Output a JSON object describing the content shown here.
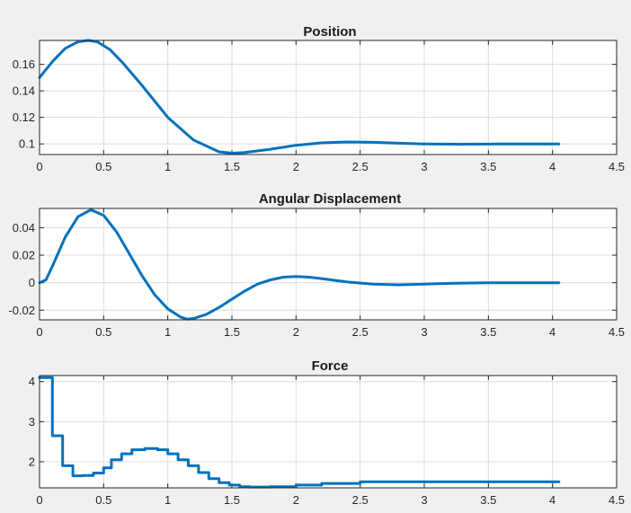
{
  "colors": {
    "line": "#0072bd",
    "background": "#f0f0f0",
    "axes_bg": "#ffffff",
    "grid": "#dcdcdc",
    "box": "#262626"
  },
  "chart_data": [
    {
      "type": "line",
      "title": "Position",
      "xlabel": "",
      "ylabel": "",
      "xlim": [
        0,
        4.5
      ],
      "ylim": [
        0.092,
        0.178
      ],
      "grid": true,
      "xticks": [
        "0",
        "0.5",
        "1",
        "1.5",
        "2",
        "2.5",
        "3",
        "3.5",
        "4",
        "4.5"
      ],
      "yticks": [
        "0.1",
        "0.12",
        "0.14",
        "0.16"
      ],
      "series": [
        {
          "x": [
            0,
            0.1,
            0.2,
            0.3,
            0.38,
            0.45,
            0.55,
            0.65,
            0.8,
            1.0,
            1.2,
            1.4,
            1.5,
            1.6,
            1.8,
            2.0,
            2.2,
            2.4,
            2.6,
            2.8,
            3.0,
            3.3,
            3.6,
            4.05
          ],
          "y": [
            0.15,
            0.162,
            0.172,
            0.177,
            0.178,
            0.177,
            0.171,
            0.161,
            0.144,
            0.12,
            0.103,
            0.094,
            0.093,
            0.0935,
            0.096,
            0.099,
            0.1008,
            0.1015,
            0.1012,
            0.1005,
            0.1,
            0.0998,
            0.1,
            0.1
          ]
        }
      ]
    },
    {
      "type": "line",
      "title": "Angular Displacement",
      "xlabel": "",
      "ylabel": "",
      "xlim": [
        0,
        4.5
      ],
      "ylim": [
        -0.027,
        0.054
      ],
      "grid": true,
      "xticks": [
        "0",
        "0.5",
        "1",
        "1.5",
        "2",
        "2.5",
        "3",
        "3.5",
        "4",
        "4.5"
      ],
      "yticks": [
        "-0.02",
        "0",
        "0.02",
        "0.04"
      ],
      "series": [
        {
          "x": [
            0,
            0.05,
            0.1,
            0.2,
            0.3,
            0.4,
            0.5,
            0.6,
            0.7,
            0.8,
            0.9,
            1.0,
            1.1,
            1.15,
            1.2,
            1.3,
            1.4,
            1.5,
            1.6,
            1.7,
            1.8,
            1.9,
            2.0,
            2.1,
            2.2,
            2.4,
            2.6,
            2.8,
            3.0,
            3.2,
            3.5,
            3.8,
            4.05
          ],
          "y": [
            0,
            0.002,
            0.012,
            0.033,
            0.048,
            0.053,
            0.049,
            0.037,
            0.021,
            0.005,
            -0.009,
            -0.019,
            -0.025,
            -0.0265,
            -0.026,
            -0.023,
            -0.018,
            -0.012,
            -0.006,
            -0.001,
            0.002,
            0.004,
            0.0045,
            0.004,
            0.003,
            0.0005,
            -0.001,
            -0.0015,
            -0.001,
            -0.0005,
            0,
            0,
            0
          ]
        }
      ]
    },
    {
      "type": "line",
      "title": "Force",
      "xlabel": "",
      "ylabel": "",
      "xlim": [
        0,
        4.5
      ],
      "ylim": [
        1.35,
        4.15
      ],
      "grid": true,
      "xticks": [
        "0",
        "0.5",
        "1",
        "1.5",
        "2",
        "2.5",
        "3",
        "3.5",
        "4",
        "4.5"
      ],
      "yticks": [
        "2",
        "3",
        "4"
      ],
      "series": [
        {
          "step": true,
          "x": [
            0,
            0.1,
            0.18,
            0.26,
            0.34,
            0.42,
            0.5,
            0.56,
            0.64,
            0.72,
            0.82,
            0.92,
            1.0,
            1.08,
            1.16,
            1.24,
            1.32,
            1.4,
            1.48,
            1.56,
            1.64,
            1.8,
            2.0,
            2.2,
            2.5,
            2.8,
            3.1,
            3.5,
            4.05
          ],
          "y": [
            4.1,
            2.65,
            1.9,
            1.65,
            1.66,
            1.72,
            1.85,
            2.05,
            2.2,
            2.3,
            2.33,
            2.3,
            2.2,
            2.05,
            1.9,
            1.73,
            1.58,
            1.48,
            1.42,
            1.38,
            1.37,
            1.38,
            1.42,
            1.46,
            1.5,
            1.5,
            1.5,
            1.5,
            1.5
          ]
        }
      ]
    }
  ]
}
